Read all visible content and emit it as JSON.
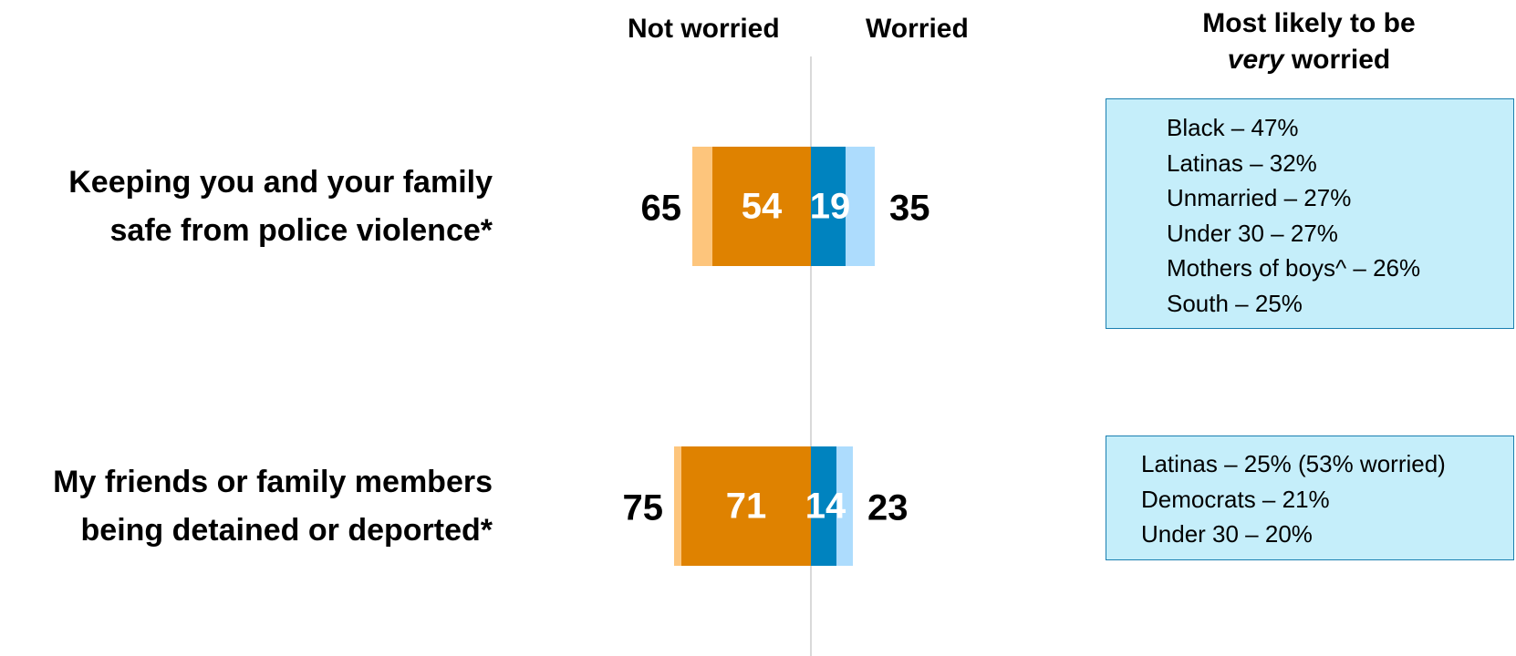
{
  "headers": {
    "not_worried": "Not worried",
    "worried": "Worried",
    "most_likely_line1": "Most likely to be",
    "most_likely_very": "very",
    "most_likely_rest": " worried"
  },
  "colors": {
    "not_worried_light": "#fdc57c",
    "not_worried_strong": "#df8200",
    "worried_strong": "#0083bf",
    "worried_light": "#addcfd",
    "callout_bg": "#c5eefa",
    "callout_border": "#1a7fb0"
  },
  "chart_data": {
    "type": "bar",
    "orientation": "horizontal-diverging",
    "categories": [
      "Keeping you and your family safe from police violence*",
      "My friends or family members being detained or deported*"
    ],
    "series": [
      {
        "name": "Not worried",
        "values": [
          65,
          75
        ]
      },
      {
        "name": "Worried",
        "values": [
          35,
          23
        ]
      }
    ],
    "strong": {
      "not_worried": [
        54,
        71
      ],
      "worried": [
        19,
        14
      ]
    },
    "xlim": [
      -100,
      100
    ]
  },
  "rows": [
    {
      "label_line1": "Keeping you and your family",
      "label_line2": "safe from police violence*",
      "callout": [
        "Black – 47%",
        "Latinas – 32%",
        "Unmarried – 27%",
        "Under 30 – 27%",
        "Mothers of boys^ – 26%",
        "South – 25%"
      ]
    },
    {
      "label_line1": "My friends or family members",
      "label_line2": "being detained or deported*",
      "callout": [
        "Latinas – 25% (53% worried)",
        "Democrats – 21%",
        "Under 30 – 20%"
      ]
    }
  ]
}
